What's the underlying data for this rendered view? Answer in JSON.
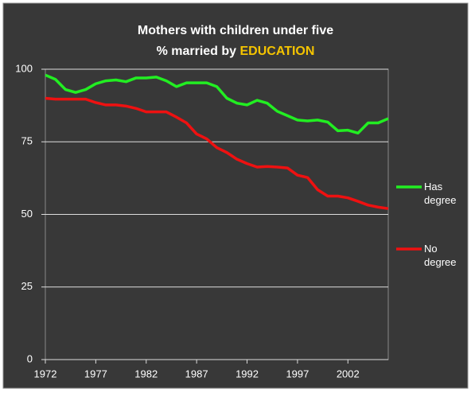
{
  "chart_data": {
    "type": "line",
    "title": "Mothers with children under five",
    "subtitle": "% married by",
    "subtitle_highlight": "EDUCATION",
    "x": [
      1972,
      1973,
      1974,
      1975,
      1976,
      1977,
      1978,
      1979,
      1980,
      1981,
      1982,
      1983,
      1984,
      1985,
      1986,
      1987,
      1988,
      1989,
      1990,
      1991,
      1992,
      1993,
      1994,
      1995,
      1996,
      1997,
      1998,
      1999,
      2000,
      2001,
      2002,
      2003,
      2004,
      2005,
      2006
    ],
    "xlim": [
      1972,
      2006
    ],
    "xticks": [
      1972,
      1977,
      1982,
      1987,
      1992,
      1997,
      2002
    ],
    "ylim": [
      0,
      100
    ],
    "yticks": [
      0,
      25,
      50,
      75,
      100
    ],
    "grid": true,
    "legend": "right",
    "series": [
      {
        "name": "Has degree",
        "color": "#22ee22",
        "values": [
          98,
          96.5,
          93,
          92,
          93,
          95,
          96,
          96.3,
          95.7,
          97,
          97,
          97.3,
          96,
          94,
          95.3,
          95.3,
          95.3,
          94,
          90,
          88.3,
          87.7,
          89.3,
          88.3,
          85.5,
          84,
          82.5,
          82.2,
          82.5,
          81.8,
          78.8,
          79,
          78,
          81.5,
          81.5,
          83
        ]
      },
      {
        "name": "No degree",
        "color": "#ee1111",
        "values": [
          90,
          89.7,
          89.7,
          89.7,
          89.7,
          88.5,
          87.7,
          87.7,
          87.3,
          86.5,
          85.3,
          85.3,
          85.3,
          83.5,
          81.5,
          77.7,
          76,
          73,
          71.3,
          69,
          67.5,
          66.3,
          66.5,
          66.3,
          66,
          63.5,
          62.7,
          58.5,
          56.3,
          56.3,
          55.7,
          54.5,
          53.2,
          52.5,
          52
        ]
      }
    ]
  }
}
